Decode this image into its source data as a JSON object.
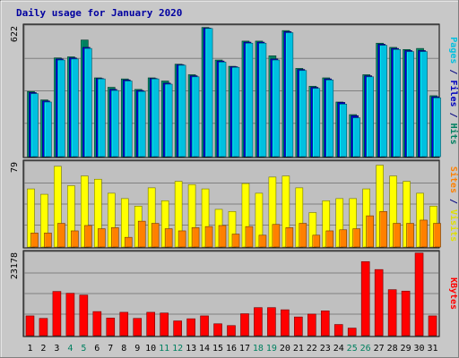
{
  "chart_data": {
    "type": "bar",
    "title": "Daily usage for January 2020",
    "categories": [
      "1",
      "2",
      "3",
      "4",
      "5",
      "6",
      "7",
      "8",
      "9",
      "10",
      "11",
      "12",
      "13",
      "14",
      "15",
      "16",
      "17",
      "18",
      "19",
      "20",
      "21",
      "22",
      "23",
      "24",
      "25",
      "26",
      "27",
      "28",
      "29",
      "30",
      "31"
    ],
    "weekend_days": [
      "4",
      "5",
      "11",
      "12",
      "18",
      "19",
      "25",
      "26"
    ],
    "panels": [
      {
        "id": "hits-files-pages",
        "ymax": 622,
        "ymax_label": "622",
        "axis_label_parts": [
          {
            "text": "Pages",
            "color": "#00c0e0"
          },
          {
            "text": " / ",
            "color": "#000080"
          },
          {
            "text": "Files",
            "color": "#0000c0"
          },
          {
            "text": " / ",
            "color": "#000080"
          },
          {
            "text": "Hits",
            "color": "#008060"
          }
        ],
        "series": [
          {
            "name": "Hits",
            "color": "#008060",
            "values": [
              310,
              270,
              470,
              475,
              555,
              375,
              330,
              370,
              320,
              375,
              360,
              440,
              390,
              615,
              460,
              430,
              550,
              550,
              480,
              600,
              420,
              335,
              375,
              260,
              200,
              390,
              540,
              520,
              510,
              515,
              290
            ]
          },
          {
            "name": "Files",
            "color": "#0000c0",
            "values": [
              305,
              265,
              465,
              470,
              520,
              372,
              320,
              365,
              315,
              372,
              350,
              438,
              385,
              612,
              455,
              428,
              545,
              545,
              465,
              595,
              415,
              330,
              370,
              258,
              195,
              385,
              535,
              515,
              505,
              505,
              285
            ]
          },
          {
            "name": "Pages",
            "color": "#00c0e0",
            "values": [
              300,
              260,
              460,
              465,
              515,
              370,
              315,
              360,
              310,
              370,
              345,
              435,
              380,
              610,
              450,
              425,
              540,
              540,
              460,
              590,
              410,
              325,
              365,
              250,
              185,
              380,
              530,
              510,
              500,
              500,
              280
            ]
          }
        ]
      },
      {
        "id": "visits-sites",
        "ymax": 79,
        "ymax_label": "79",
        "axis_label_parts": [
          {
            "text": "Sites",
            "color": "#ff8000"
          },
          {
            "text": " / ",
            "color": "#000080"
          },
          {
            "text": "Visits",
            "color": "#e0e000"
          }
        ],
        "series": [
          {
            "name": "Visits",
            "color": "#ffff00",
            "values": [
              54,
              49,
              75,
              57,
              66,
              63,
              50,
              45,
              38,
              55,
              43,
              61,
              58,
              54,
              35,
              33,
              59,
              50,
              65,
              66,
              55,
              32,
              43,
              45,
              45,
              54,
              76,
              66,
              61,
              50,
              38
            ]
          },
          {
            "name": "Sites",
            "color": "#ff8000",
            "values": [
              13,
              13,
              22,
              15,
              20,
              17,
              18,
              9,
              24,
              22,
              17,
              15,
              18,
              19,
              20,
              12,
              19,
              11,
              21,
              18,
              22,
              11,
              15,
              16,
              17,
              29,
              33,
              22,
              22,
              25,
              22
            ]
          }
        ]
      },
      {
        "id": "kbytes",
        "ymax": 23178,
        "ymax_label": "23178",
        "axis_label_parts": [
          {
            "text": "KBytes",
            "color": "#ff0000"
          }
        ],
        "series": [
          {
            "name": "KBytes",
            "color": "#ff0000",
            "values": [
              5500,
              4800,
              12300,
              11800,
              11300,
              6700,
              4900,
              6500,
              4800,
              6500,
              6300,
              4100,
              4700,
              5500,
              3300,
              2800,
              6100,
              7800,
              7800,
              7200,
              5200,
              6000,
              6900,
              3100,
              2100,
              20600,
              18400,
              12800,
              12400,
              23000,
              5500
            ]
          }
        ]
      }
    ]
  }
}
